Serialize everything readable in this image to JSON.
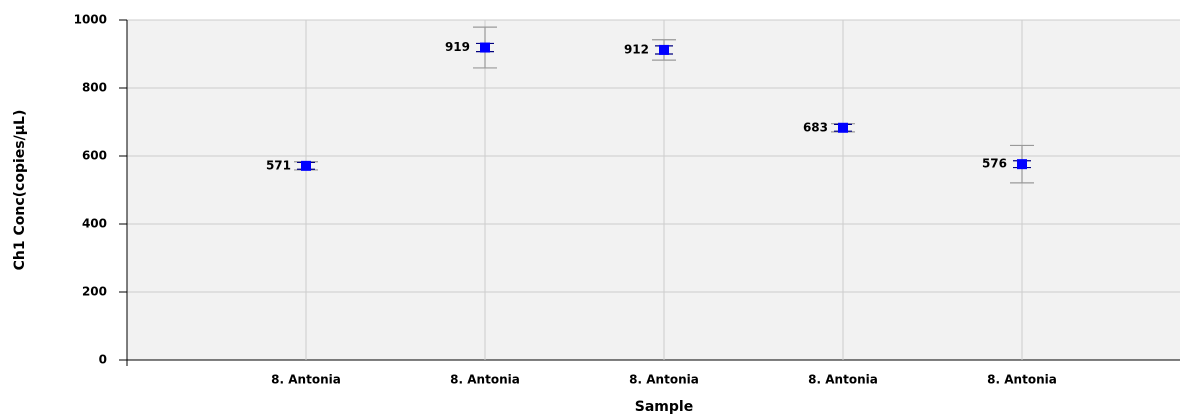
{
  "chart_data": {
    "type": "scatter",
    "x_label": "Sample",
    "y_label": "Ch1 Conc(copies/µL)",
    "categories": [
      "8. Antonia",
      "8. Antonia",
      "8. Antonia",
      "8. Antonia",
      "8. Antonia"
    ],
    "values": [
      571,
      919,
      912,
      683,
      576
    ],
    "errors": [
      10,
      12,
      12,
      10,
      10
    ],
    "outer_errors": [
      12,
      60,
      30,
      12,
      55
    ],
    "color": "#0000ff",
    "error_color": "#000080",
    "outer_error_color": "#999999",
    "ylim": [
      0,
      1000
    ],
    "yticks": [
      0,
      200,
      400,
      600,
      800,
      1000
    ],
    "grid": true
  }
}
